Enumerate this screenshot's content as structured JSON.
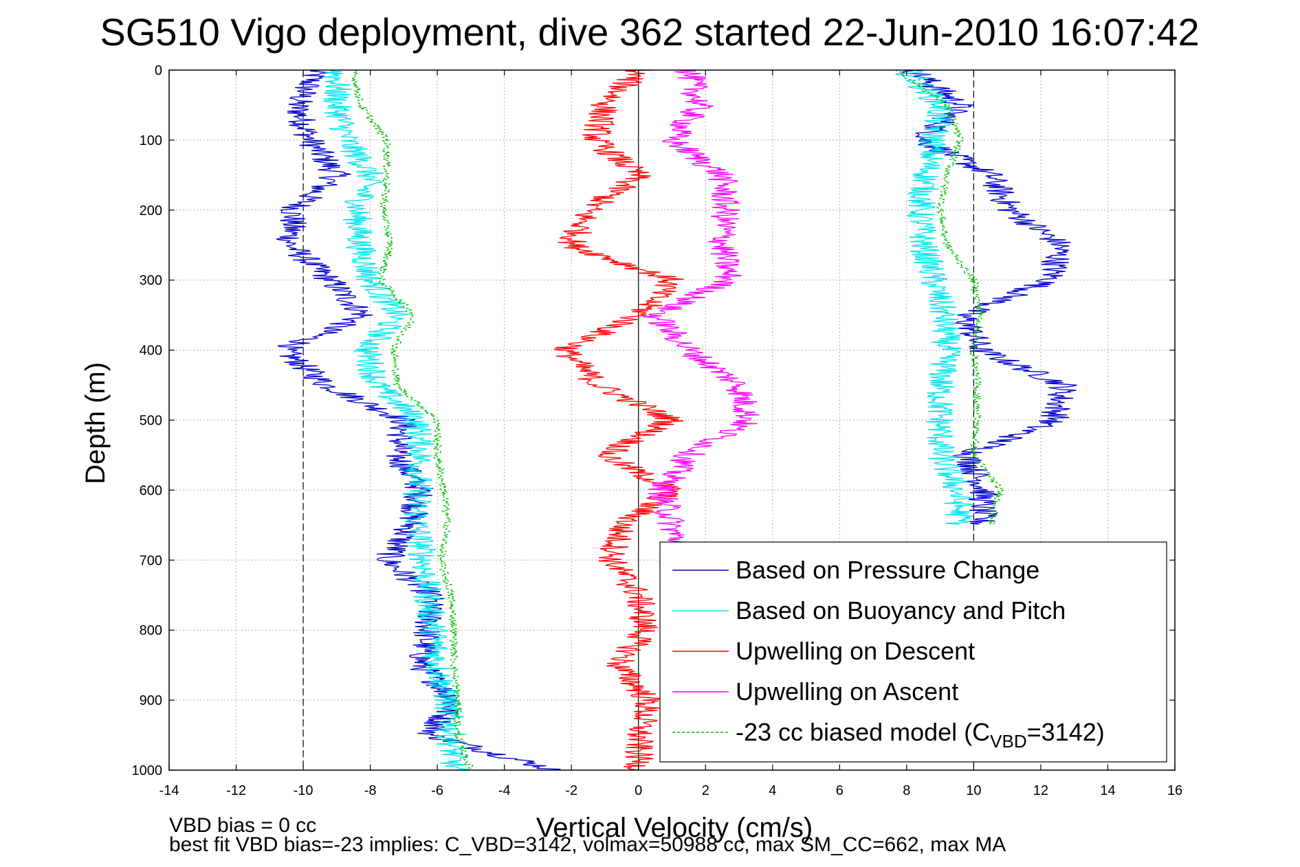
{
  "chart_data": {
    "type": "line",
    "title": "SG510 Vigo deployment, dive 362 started 22-Jun-2010 16:07:42",
    "xlabel": "Vertical Velocity (cm/s)",
    "ylabel": "Depth (m)",
    "xlim": [
      -14,
      16
    ],
    "ylim": [
      0,
      1000
    ],
    "y_reversed": true,
    "grid": true,
    "legend_position": "bottom-right",
    "xticks": [
      "-14",
      "-12",
      "-10",
      "-8",
      "-6",
      "-4",
      "-2",
      "0",
      "2",
      "4",
      "6",
      "8",
      "10",
      "12",
      "14",
      "16"
    ],
    "yticks": [
      "0",
      "100",
      "200",
      "300",
      "400",
      "500",
      "600",
      "700",
      "800",
      "900",
      "1000"
    ],
    "reference_lines_x": [
      -10,
      0,
      10
    ],
    "depth": [
      0,
      50,
      100,
      150,
      200,
      250,
      300,
      350,
      400,
      450,
      500,
      550,
      600,
      650,
      700,
      750,
      800,
      850,
      900,
      950,
      1000
    ],
    "series": [
      {
        "name": "Based on Pressure Change",
        "color": "#0000cc",
        "style": "solid",
        "descent": [
          -9.6,
          -10.2,
          -9.8,
          -9.0,
          -10.3,
          -10.4,
          -9.2,
          -8.2,
          -10.6,
          -9.3,
          -7.0,
          -7.2,
          -6.5,
          -6.8,
          -7.5,
          -6.2,
          -6.3,
          -6.5,
          -5.5,
          -6.2,
          -2.5
        ],
        "ascent": [
          8.2,
          9.6,
          8.5,
          10.5,
          11.1,
          12.6,
          12.3,
          9.7,
          10.2,
          12.7,
          12.4,
          9.8,
          10.3,
          10.2,
          null,
          null,
          null,
          null,
          null,
          null,
          null
        ]
      },
      {
        "name": "Based on Buoyancy and Pitch",
        "color": "#00e5ee",
        "style": "solid",
        "descent": [
          -9.0,
          -9.0,
          -8.7,
          -8.0,
          -8.4,
          -8.3,
          -8.0,
          -7.2,
          -8.1,
          -7.8,
          -6.6,
          -6.5,
          -6.6,
          -6.6,
          -6.4,
          -6.3,
          -6.1,
          -6.0,
          -5.7,
          -5.6,
          -5.5
        ],
        "ascent": [
          8.0,
          9.0,
          8.8,
          8.6,
          8.4,
          8.5,
          8.8,
          9.1,
          9.2,
          9.0,
          9.0,
          9.0,
          9.5,
          9.6,
          null,
          null,
          null,
          null,
          null,
          null,
          null
        ]
      },
      {
        "name": "Upwelling on Descent",
        "color": "#ff0000",
        "style": "solid",
        "descent": [
          0.0,
          -1.0,
          -1.3,
          0.0,
          -1.5,
          -2.0,
          1.0,
          0.0,
          -2.2,
          -1.2,
          1.0,
          -1.0,
          1.0,
          -0.5,
          -0.8,
          0.0,
          0.2,
          -0.6,
          0.3,
          0.0,
          0.0
        ]
      },
      {
        "name": "Upwelling on Ascent",
        "color": "#ff00ff",
        "style": "solid",
        "ascent": [
          1.5,
          1.8,
          1.0,
          2.5,
          2.6,
          2.5,
          2.7,
          0.5,
          1.5,
          3.0,
          3.3,
          1.5,
          0.7,
          1.0,
          1.3,
          null,
          null,
          null,
          null,
          null,
          null
        ]
      },
      {
        "name": "-23 cc biased model (C",
        "name_subscript": "VBD",
        "name_suffix": "=3142)",
        "color": "#00bb00",
        "style": "dashed",
        "descent": [
          -8.5,
          -8.3,
          -7.5,
          -7.5,
          -7.6,
          -7.4,
          -7.7,
          -6.7,
          -7.3,
          -7.2,
          -6.0,
          -6.0,
          -5.8,
          -5.7,
          -5.9,
          -5.6,
          -5.5,
          -5.5,
          -5.4,
          -5.4,
          -5.0
        ],
        "ascent": [
          7.7,
          9.2,
          9.6,
          9.2,
          9.0,
          9.2,
          10.0,
          10.2,
          10.0,
          10.1,
          10.1,
          10.0,
          10.8,
          10.5,
          null,
          null,
          null,
          null,
          null,
          null,
          null
        ]
      }
    ]
  },
  "footer": {
    "line1": "VBD bias = 0 cc",
    "line2": "best fit VBD bias=-23 implies: C_VBD=3142, volmax=50988 cc, max SM_CC=662, max MA"
  }
}
